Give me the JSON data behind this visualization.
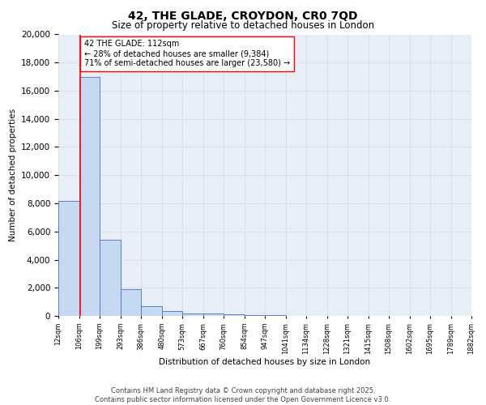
{
  "title1": "42, THE GLADE, CROYDON, CR0 7QD",
  "title2": "Size of property relative to detached houses in London",
  "xlabel": "Distribution of detached houses by size in London",
  "ylabel": "Number of detached properties",
  "bar_edges": [
    12,
    106,
    199,
    293,
    386,
    480,
    573,
    667,
    760,
    854,
    947,
    1041,
    1134,
    1228,
    1321,
    1415,
    1508,
    1602,
    1695,
    1789,
    1882
  ],
  "bar_heights": [
    8200,
    17000,
    5400,
    1900,
    700,
    350,
    200,
    150,
    100,
    50,
    30,
    20,
    15,
    12,
    8,
    5,
    4,
    3,
    2,
    1
  ],
  "bar_color": "#c6d9f0",
  "bar_edge_color": "#4472c4",
  "vline_x": 112,
  "vline_color": "red",
  "annotation_text": "42 THE GLADE: 112sqm\n← 28% of detached houses are smaller (9,384)\n71% of semi-detached houses are larger (23,580) →",
  "ylim": [
    0,
    20000
  ],
  "yticks": [
    0,
    2000,
    4000,
    6000,
    8000,
    10000,
    12000,
    14000,
    16000,
    18000,
    20000
  ],
  "tick_labels": [
    "12sqm",
    "106sqm",
    "199sqm",
    "293sqm",
    "386sqm",
    "480sqm",
    "573sqm",
    "667sqm",
    "760sqm",
    "854sqm",
    "947sqm",
    "1041sqm",
    "1134sqm",
    "1228sqm",
    "1321sqm",
    "1415sqm",
    "1508sqm",
    "1602sqm",
    "1695sqm",
    "1789sqm",
    "1882sqm"
  ],
  "grid_color": "#d0d8e8",
  "bg_color": "#e8eef8",
  "footer_text": "Contains HM Land Registry data © Crown copyright and database right 2025.\nContains public sector information licensed under the Open Government Licence v3.0.",
  "title1_fontsize": 10,
  "title2_fontsize": 8.5,
  "ylabel_fontsize": 7.5,
  "xlabel_fontsize": 7.5,
  "ytick_fontsize": 7.5,
  "xtick_fontsize": 6,
  "annotation_fontsize": 7,
  "footer_fontsize": 6
}
